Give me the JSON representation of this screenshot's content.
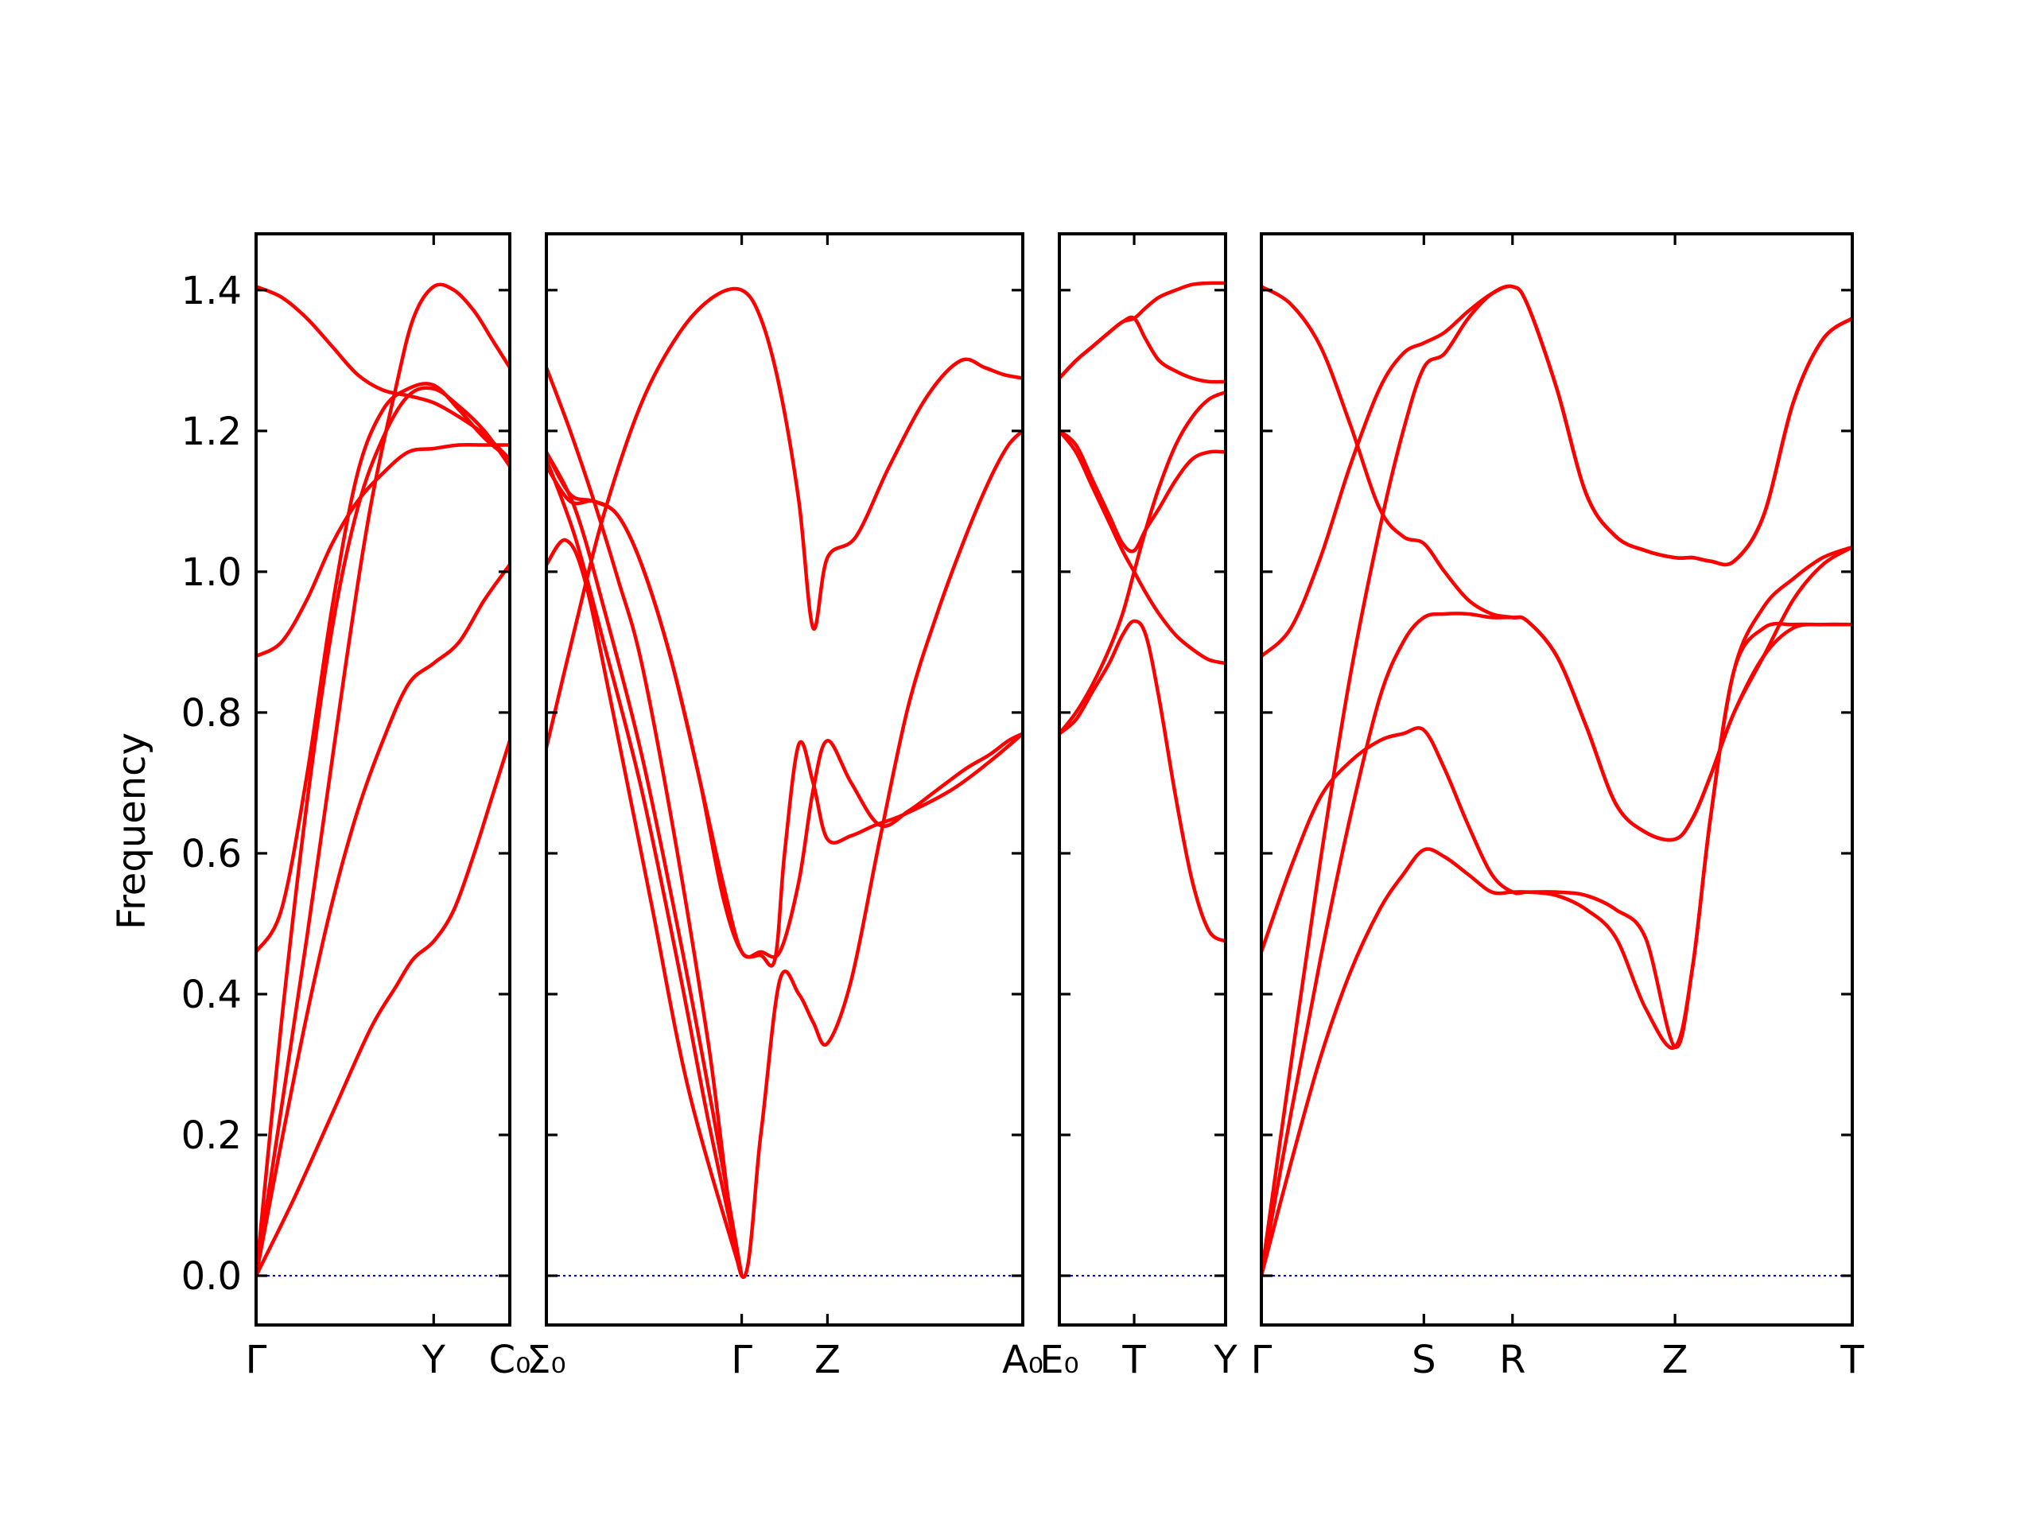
{
  "colors": {
    "band": "#ff0000",
    "zero_line": "#0000cc",
    "frame": "#000000"
  },
  "chart_data": {
    "type": "line",
    "title": "",
    "xlabel": "",
    "ylabel": "Frequency",
    "ylim": [
      -0.07,
      1.48
    ],
    "yticks": [
      0.0,
      0.2,
      0.4,
      0.6,
      0.8,
      1.0,
      1.2,
      1.4
    ],
    "ytick_labels": [
      "0.0",
      "0.2",
      "0.4",
      "0.6",
      "0.8",
      "1.0",
      "1.2",
      "1.4"
    ],
    "grid": false,
    "panels": [
      {
        "xlim": [
          0,
          1
        ],
        "xticks": [
          0,
          0.7,
          1
        ],
        "xtick_labels": [
          "Γ",
          "Y",
          "C₀"
        ],
        "series": [
          {
            "x": [
              0,
              0.15,
              0.3,
              0.45,
              0.55,
              0.62,
              0.7,
              0.78,
              0.86,
              0.93,
              1.0
            ],
            "y": [
              0.0,
              0.11,
              0.23,
              0.35,
              0.41,
              0.45,
              0.475,
              0.52,
              0.6,
              0.68,
              0.76
            ]
          },
          {
            "x": [
              0,
              0.1,
              0.2,
              0.3,
              0.4,
              0.5,
              0.6,
              0.7,
              0.8,
              0.9,
              1.0
            ],
            "y": [
              0.0,
              0.19,
              0.37,
              0.53,
              0.66,
              0.76,
              0.84,
              0.87,
              0.9,
              0.96,
              1.01
            ]
          },
          {
            "x": [
              0,
              0.1,
              0.2,
              0.3,
              0.4,
              0.5,
              0.6,
              0.7,
              0.8,
              0.9,
              1.0
            ],
            "y": [
              0.0,
              0.36,
              0.67,
              0.92,
              1.09,
              1.19,
              1.25,
              1.26,
              1.235,
              1.2,
              1.15
            ]
          },
          {
            "x": [
              0,
              0.1,
              0.2,
              0.3,
              0.4,
              0.5,
              0.6,
              0.7,
              0.8,
              0.9,
              1.0
            ],
            "y": [
              0.46,
              0.52,
              0.71,
              0.95,
              1.14,
              1.23,
              1.26,
              1.265,
              1.23,
              1.19,
              1.16
            ]
          },
          {
            "x": [
              0,
              0.1,
              0.2,
              0.3,
              0.4,
              0.5,
              0.6,
              0.7,
              0.8,
              0.9,
              1.0
            ],
            "y": [
              0.88,
              0.9,
              0.96,
              1.04,
              1.1,
              1.14,
              1.17,
              1.175,
              1.18,
              1.18,
              1.18
            ]
          },
          {
            "x": [
              0,
              0.1,
              0.2,
              0.3,
              0.4,
              0.5,
              0.6,
              0.7,
              0.8,
              0.9,
              1.0
            ],
            "y": [
              1.405,
              1.39,
              1.36,
              1.32,
              1.28,
              1.258,
              1.25,
              1.24,
              1.22,
              1.195,
              1.16
            ]
          },
          {
            "x": [
              0,
              0.2,
              0.35,
              0.45,
              0.55,
              0.62,
              0.7,
              0.78,
              0.86,
              0.93,
              1.0
            ],
            "y": [
              0.0,
              0.48,
              0.86,
              1.09,
              1.26,
              1.36,
              1.405,
              1.4,
              1.37,
              1.33,
              1.29
            ]
          }
        ]
      },
      {
        "xlim": [
          0,
          1
        ],
        "xticks": [
          0,
          0.41,
          0.59,
          1
        ],
        "xtick_labels": [
          "Σ₀",
          "Γ",
          "Z",
          "A₀"
        ],
        "series": [
          {
            "x": [
              0,
              0.06,
              0.12,
              0.2,
              0.28,
              0.34,
              0.41
            ],
            "y": [
              1.16,
              1.05,
              0.9,
              0.69,
              0.43,
              0.22,
              0.0
            ]
          },
          {
            "x": [
              0,
              0.04,
              0.08,
              0.14,
              0.22,
              0.3,
              0.41
            ],
            "y": [
              1.01,
              1.045,
              0.99,
              0.8,
              0.53,
              0.26,
              0.0
            ]
          },
          {
            "x": [
              0,
              0.06,
              0.12,
              0.2,
              0.28,
              0.35,
              0.41
            ],
            "y": [
              1.17,
              1.09,
              0.95,
              0.74,
              0.48,
              0.23,
              0.0
            ]
          },
          {
            "x": [
              0,
              0.05,
              0.1,
              0.15,
              0.2,
              0.26,
              0.32,
              0.37,
              0.41,
              0.45,
              0.48,
              0.5,
              0.53,
              0.56,
              0.59,
              0.64,
              0.69,
              0.75,
              0.85,
              0.93,
              1.0
            ],
            "y": [
              1.17,
              1.11,
              1.1,
              1.08,
              1.01,
              0.88,
              0.71,
              0.54,
              0.46,
              0.455,
              0.45,
              0.6,
              0.755,
              0.7,
              0.62,
              0.625,
              0.64,
              0.655,
              0.69,
              0.73,
              0.77
            ]
          },
          {
            "x": [
              0,
              0.05,
              0.1,
              0.15,
              0.2,
              0.27,
              0.34,
              0.41,
              0.45,
              0.49,
              0.53,
              0.56,
              0.59,
              0.64,
              0.7,
              0.76,
              0.82,
              0.88,
              0.93,
              0.97,
              1.0
            ],
            "y": [
              1.29,
              1.2,
              1.1,
              0.99,
              0.87,
              0.62,
              0.33,
              0.0,
              0.2,
              0.42,
              0.4,
              0.36,
              0.33,
              0.42,
              0.62,
              0.81,
              0.94,
              1.05,
              1.13,
              1.18,
              1.2
            ]
          },
          {
            "x": [
              0,
              0.06,
              0.12,
              0.2,
              0.28,
              0.35,
              0.41,
              0.45,
              0.49,
              0.53,
              0.56,
              0.59,
              0.65,
              0.72,
              0.8,
              0.87,
              0.92,
              0.96,
              1.0
            ],
            "y": [
              0.75,
              0.92,
              1.08,
              1.24,
              1.34,
              1.39,
              1.4,
              1.36,
              1.26,
              1.1,
              0.92,
              1.02,
              1.05,
              1.15,
              1.25,
              1.3,
              1.29,
              1.28,
              1.275
            ]
          },
          {
            "x": [
              0,
              0.05,
              0.1,
              0.15,
              0.2,
              0.26,
              0.32,
              0.37,
              0.41,
              0.45,
              0.49,
              0.53,
              0.56,
              0.59,
              0.64,
              0.7,
              0.76,
              0.82,
              0.88,
              0.93,
              0.97,
              1.0
            ],
            "y": [
              1.15,
              1.1,
              1.1,
              1.08,
              1.01,
              0.88,
              0.71,
              0.56,
              0.46,
              0.46,
              0.46,
              0.56,
              0.69,
              0.76,
              0.7,
              0.64,
              0.66,
              0.69,
              0.72,
              0.74,
              0.76,
              0.77
            ]
          }
        ]
      },
      {
        "xlim": [
          0,
          1
        ],
        "xticks": [
          0,
          0.45,
          1
        ],
        "xtick_labels": [
          "E₀",
          "T",
          "Y"
        ],
        "series": [
          {
            "x": [
              0,
              0.1,
              0.2,
              0.3,
              0.38,
              0.45,
              0.52,
              0.6,
              0.7,
              0.8,
              0.9,
              1.0
            ],
            "y": [
              0.77,
              0.79,
              0.83,
              0.87,
              0.91,
              0.93,
              0.91,
              0.82,
              0.68,
              0.56,
              0.49,
              0.475
            ]
          },
          {
            "x": [
              0,
              0.1,
              0.2,
              0.3,
              0.38,
              0.45,
              0.52,
              0.6,
              0.7,
              0.8,
              0.9,
              1.0
            ],
            "y": [
              1.2,
              1.18,
              1.13,
              1.08,
              1.04,
              1.03,
              1.06,
              1.09,
              1.13,
              1.16,
              1.17,
              1.17
            ]
          },
          {
            "x": [
              0,
              0.1,
              0.2,
              0.3,
              0.38,
              0.45,
              0.52,
              0.6,
              0.7,
              0.8,
              0.9,
              1.0
            ],
            "y": [
              1.275,
              1.3,
              1.32,
              1.34,
              1.355,
              1.36,
              1.33,
              1.3,
              1.285,
              1.275,
              1.27,
              1.27
            ]
          },
          {
            "x": [
              0,
              0.1,
              0.2,
              0.3,
              0.38,
              0.45,
              0.52,
              0.6,
              0.7,
              0.8,
              0.9,
              1.0
            ],
            "y": [
              1.2,
              1.17,
              1.12,
              1.07,
              1.03,
              1.0,
              0.97,
              0.94,
              0.91,
              0.89,
              0.875,
              0.87
            ]
          },
          {
            "x": [
              0,
              0.1,
              0.2,
              0.3,
              0.38,
              0.45,
              0.52,
              0.6,
              0.7,
              0.8,
              0.9,
              1.0
            ],
            "y": [
              0.77,
              0.8,
              0.84,
              0.89,
              0.94,
              1.0,
              1.06,
              1.12,
              1.18,
              1.22,
              1.245,
              1.255
            ]
          },
          {
            "x": [
              0,
              0.1,
              0.2,
              0.3,
              0.38,
              0.45,
              0.52,
              0.6,
              0.7,
              0.8,
              0.9,
              1.0
            ],
            "y": [
              1.275,
              1.3,
              1.32,
              1.34,
              1.355,
              1.36,
              1.375,
              1.39,
              1.4,
              1.408,
              1.41,
              1.41
            ]
          }
        ]
      },
      {
        "xlim": [
          0,
          1
        ],
        "xticks": [
          0,
          0.275,
          0.425,
          0.7,
          1
        ],
        "xtick_labels": [
          "Γ",
          "S",
          "R",
          "Z",
          "T"
        ],
        "series": [
          {
            "x": [
              0,
              0.05,
              0.1,
              0.15,
              0.2,
              0.24,
              0.275,
              0.31,
              0.35,
              0.39,
              0.425,
              0.45,
              0.5,
              0.55,
              0.6,
              0.65,
              0.7,
              0.73,
              0.76,
              0.8,
              0.85,
              0.9,
              0.95,
              1.0
            ],
            "y": [
              0.0,
              0.16,
              0.31,
              0.43,
              0.52,
              0.57,
              0.605,
              0.595,
              0.57,
              0.545,
              0.545,
              0.545,
              0.54,
              0.52,
              0.48,
              0.38,
              0.325,
              0.44,
              0.65,
              0.86,
              0.92,
              0.925,
              0.925,
              0.925
            ]
          },
          {
            "x": [
              0,
              0.05,
              0.1,
              0.15,
              0.2,
              0.24,
              0.275,
              0.31,
              0.35,
              0.39,
              0.425,
              0.45,
              0.5,
              0.55,
              0.6,
              0.65,
              0.7,
              0.73,
              0.76,
              0.8,
              0.85,
              0.9,
              0.95,
              1.0
            ],
            "y": [
              0.46,
              0.58,
              0.68,
              0.73,
              0.76,
              0.77,
              0.775,
              0.72,
              0.64,
              0.57,
              0.545,
              0.545,
              0.545,
              0.54,
              0.52,
              0.48,
              0.325,
              0.44,
              0.65,
              0.86,
              0.95,
              0.99,
              1.02,
              1.035
            ]
          },
          {
            "x": [
              0,
              0.05,
              0.1,
              0.15,
              0.2,
              0.24,
              0.275,
              0.31,
              0.35,
              0.39,
              0.425,
              0.45,
              0.5,
              0.55,
              0.6,
              0.65,
              0.7,
              0.73,
              0.76,
              0.8,
              0.85,
              0.9,
              0.95,
              1.0
            ],
            "y": [
              0.0,
              0.23,
              0.45,
              0.65,
              0.82,
              0.9,
              0.935,
              0.94,
              0.94,
              0.935,
              0.935,
              0.93,
              0.88,
              0.78,
              0.67,
              0.63,
              0.62,
              0.65,
              0.71,
              0.8,
              0.88,
              0.96,
              1.01,
              1.035
            ]
          },
          {
            "x": [
              0,
              0.05,
              0.1,
              0.15,
              0.2,
              0.24,
              0.275,
              0.31,
              0.35,
              0.39,
              0.425,
              0.45,
              0.5,
              0.55,
              0.6,
              0.65,
              0.7,
              0.73,
              0.76,
              0.8,
              0.85,
              0.9,
              0.95,
              1.0
            ],
            "y": [
              1.405,
              1.38,
              1.32,
              1.21,
              1.09,
              1.05,
              1.04,
              1.0,
              0.96,
              0.94,
              0.935,
              0.93,
              0.88,
              0.78,
              0.67,
              0.63,
              0.62,
              0.65,
              0.71,
              0.8,
              0.88,
              0.92,
              0.925,
              0.925
            ]
          },
          {
            "x": [
              0,
              0.05,
              0.1,
              0.15,
              0.2,
              0.24,
              0.275,
              0.31,
              0.35,
              0.39,
              0.425,
              0.45,
              0.5,
              0.55,
              0.6,
              0.65,
              0.7,
              0.73,
              0.76,
              0.8,
              0.85,
              0.9,
              0.95,
              1.0
            ],
            "y": [
              0.0,
              0.3,
              0.59,
              0.85,
              1.06,
              1.2,
              1.29,
              1.31,
              1.36,
              1.395,
              1.405,
              1.38,
              1.26,
              1.11,
              1.05,
              1.03,
              1.02,
              1.02,
              1.015,
              1.015,
              1.08,
              1.24,
              1.33,
              1.36
            ]
          },
          {
            "x": [
              0,
              0.05,
              0.1,
              0.15,
              0.2,
              0.24,
              0.275,
              0.31,
              0.35,
              0.39,
              0.425,
              0.45,
              0.5,
              0.55,
              0.6,
              0.65,
              0.7,
              0.73,
              0.76,
              0.8,
              0.85,
              0.9,
              0.95,
              1.0
            ],
            "y": [
              0.88,
              0.92,
              1.02,
              1.15,
              1.26,
              1.31,
              1.325,
              1.34,
              1.37,
              1.395,
              1.405,
              1.38,
              1.26,
              1.11,
              1.05,
              1.03,
              1.02,
              1.02,
              1.015,
              1.015,
              1.08,
              1.24,
              1.33,
              1.36
            ]
          }
        ]
      }
    ]
  }
}
